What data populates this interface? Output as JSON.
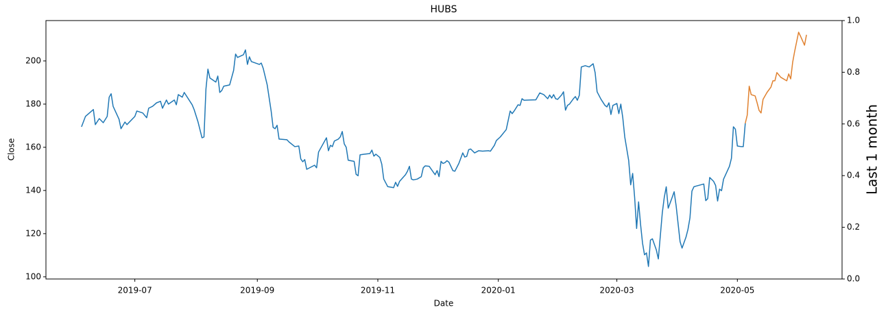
{
  "chart_data": {
    "type": "line",
    "title": "HUBS",
    "xlabel": "Date",
    "ylabel": "Close",
    "y2label": "Last 1 month",
    "xlim": [
      "2019-05-17",
      "2020-06-23"
    ],
    "xticks": [
      {
        "value": "2019-07-01",
        "label": "2019-07"
      },
      {
        "value": "2019-09-01",
        "label": "2019-09"
      },
      {
        "value": "2019-11-01",
        "label": "2019-11"
      },
      {
        "value": "2020-01-01",
        "label": "2020-01"
      },
      {
        "value": "2020-03-01",
        "label": "2020-03"
      },
      {
        "value": "2020-05-01",
        "label": "2020-05"
      }
    ],
    "ylim": [
      99.0,
      218.7
    ],
    "yticks": [
      100,
      120,
      140,
      160,
      180,
      200
    ],
    "y2lim": [
      0,
      1
    ],
    "y2ticks": [
      {
        "value": 0,
        "label": "0.0"
      },
      0.2,
      0.4,
      0.6,
      0.8,
      {
        "value": 1,
        "label": "1.0"
      }
    ],
    "grid": false,
    "series": [
      {
        "color": "#1f77b4",
        "x": [
          "2019-06-04",
          "2019-06-06",
          "2019-06-10",
          "2019-06-11",
          "2019-06-13",
          "2019-06-15",
          "2019-06-17",
          "2019-06-18",
          "2019-06-19",
          "2019-06-20",
          "2019-06-23",
          "2019-06-24",
          "2019-06-26",
          "2019-06-27",
          "2019-07-01",
          "2019-07-02",
          "2019-07-05",
          "2019-07-07",
          "2019-07-08",
          "2019-07-10",
          "2019-07-12",
          "2019-07-14",
          "2019-07-15",
          "2019-07-17",
          "2019-07-18",
          "2019-07-21",
          "2019-07-22",
          "2019-07-23",
          "2019-07-25",
          "2019-07-26",
          "2019-07-30",
          "2019-07-31",
          "2019-08-02",
          "2019-08-04",
          "2019-08-05",
          "2019-08-06",
          "2019-08-07",
          "2019-08-08",
          "2019-08-11",
          "2019-08-12",
          "2019-08-13",
          "2019-08-14",
          "2019-08-15",
          "2019-08-18",
          "2019-08-20",
          "2019-08-21",
          "2019-08-22",
          "2019-08-25",
          "2019-08-26",
          "2019-08-27",
          "2019-08-28",
          "2019-08-29",
          "2019-09-02",
          "2019-09-03",
          "2019-09-04",
          "2019-09-06",
          "2019-09-08",
          "2019-09-09",
          "2019-09-10",
          "2019-09-11",
          "2019-09-12",
          "2019-09-16",
          "2019-09-17",
          "2019-09-20",
          "2019-09-22",
          "2019-09-23",
          "2019-09-24",
          "2019-09-25",
          "2019-09-26",
          "2019-09-30",
          "2019-10-01",
          "2019-10-02",
          "2019-10-06",
          "2019-10-07",
          "2019-10-08",
          "2019-10-09",
          "2019-10-10",
          "2019-10-12",
          "2019-10-13",
          "2019-10-14",
          "2019-10-15",
          "2019-10-16",
          "2019-10-17",
          "2019-10-20",
          "2019-10-21",
          "2019-10-22",
          "2019-10-23",
          "2019-10-25",
          "2019-10-28",
          "2019-10-29",
          "2019-10-30",
          "2019-10-31",
          "2019-11-02",
          "2019-11-03",
          "2019-11-04",
          "2019-11-06",
          "2019-11-09",
          "2019-11-10",
          "2019-11-11",
          "2019-11-12",
          "2019-11-15",
          "2019-11-16",
          "2019-11-17",
          "2019-11-18",
          "2019-11-19",
          "2019-11-21",
          "2019-11-23",
          "2019-11-24",
          "2019-11-25",
          "2019-11-27",
          "2019-11-30",
          "2019-12-01",
          "2019-12-02",
          "2019-12-03",
          "2019-12-04",
          "2019-12-05",
          "2019-12-06",
          "2019-12-07",
          "2019-12-09",
          "2019-12-10",
          "2019-12-12",
          "2019-12-14",
          "2019-12-15",
          "2019-12-16",
          "2019-12-17",
          "2019-12-18",
          "2019-12-20",
          "2019-12-22",
          "2019-12-24",
          "2019-12-27",
          "2019-12-28",
          "2019-12-30",
          "2019-12-31",
          "2020-01-02",
          "2020-01-05",
          "2020-01-07",
          "2020-01-08",
          "2020-01-09",
          "2020-01-11",
          "2020-01-12",
          "2020-01-13",
          "2020-01-14",
          "2020-01-17",
          "2020-01-20",
          "2020-01-22",
          "2020-01-24",
          "2020-01-26",
          "2020-01-27",
          "2020-01-28",
          "2020-01-29",
          "2020-01-30",
          "2020-01-31",
          "2020-02-02",
          "2020-02-03",
          "2020-02-04",
          "2020-02-05",
          "2020-02-06",
          "2020-02-08",
          "2020-02-09",
          "2020-02-10",
          "2020-02-11",
          "2020-02-12",
          "2020-02-14",
          "2020-02-16",
          "2020-02-18",
          "2020-02-19",
          "2020-02-20",
          "2020-02-22",
          "2020-02-24",
          "2020-02-25",
          "2020-02-26",
          "2020-02-27",
          "2020-02-28",
          "2020-03-01",
          "2020-03-02",
          "2020-03-03",
          "2020-03-04",
          "2020-03-05",
          "2020-03-07",
          "2020-03-08",
          "2020-03-09",
          "2020-03-10",
          "2020-03-11",
          "2020-03-12",
          "2020-03-13",
          "2020-03-14",
          "2020-03-15",
          "2020-03-16",
          "2020-03-17",
          "2020-03-18",
          "2020-03-19",
          "2020-03-21",
          "2020-03-22",
          "2020-03-24",
          "2020-03-25",
          "2020-03-26",
          "2020-03-27",
          "2020-03-29",
          "2020-03-30",
          "2020-03-31",
          "2020-04-02",
          "2020-04-03",
          "2020-04-05",
          "2020-04-06",
          "2020-04-07",
          "2020-04-08",
          "2020-04-09",
          "2020-04-10",
          "2020-04-14",
          "2020-04-15",
          "2020-04-16",
          "2020-04-17",
          "2020-04-19",
          "2020-04-20",
          "2020-04-21",
          "2020-04-22",
          "2020-04-23",
          "2020-04-24",
          "2020-04-27",
          "2020-04-28",
          "2020-04-29",
          "2020-04-30",
          "2020-05-01",
          "2020-05-03",
          "2020-05-04",
          "2020-05-05"
        ],
        "values": [
          169.5,
          174.3,
          177.5,
          170.5,
          173.3,
          171.4,
          174.3,
          183.2,
          184.8,
          179,
          173,
          168.6,
          171.7,
          170.5,
          174.3,
          176.8,
          175.9,
          173.7,
          178.1,
          179,
          180.6,
          181.3,
          178.1,
          181.9,
          180,
          181.9,
          179.7,
          184.4,
          183.2,
          185.4,
          179.7,
          177.5,
          171.7,
          164.4,
          164.8,
          187,
          196.2,
          192.1,
          190.2,
          193,
          185.4,
          186.3,
          188.3,
          188.9,
          195.6,
          203.2,
          201.6,
          202.9,
          205.1,
          198.4,
          201.9,
          199.7,
          198.4,
          199,
          196.5,
          188.9,
          176.8,
          169.2,
          168.6,
          170.2,
          163.8,
          163.5,
          162.5,
          160.3,
          160.6,
          154.6,
          153.3,
          154.3,
          149.8,
          151.7,
          150.5,
          157.8,
          164.4,
          158.4,
          160.9,
          160.3,
          162.9,
          163.8,
          164.8,
          167.3,
          161.6,
          160,
          154,
          153.5,
          147.5,
          146.8,
          156.5,
          156.8,
          157.1,
          158.7,
          155.9,
          156.8,
          155.3,
          152.2,
          145.3,
          141.8,
          141.3,
          143.8,
          141.9,
          144.2,
          147.3,
          148.9,
          151.2,
          145.3,
          144.9,
          145.3,
          146.4,
          150.5,
          151.4,
          151.2,
          147.3,
          149.2,
          146.4,
          153.5,
          152.5,
          152.9,
          153.8,
          153.1,
          149.2,
          148.9,
          152.5,
          157.4,
          155.5,
          155.8,
          158.9,
          159.2,
          157.4,
          158.4,
          158.2,
          158.4,
          158.2,
          160.9,
          163.1,
          164.8,
          168.2,
          176.8,
          175.6,
          176.8,
          179.7,
          179.4,
          182.5,
          181.8,
          181.9,
          182,
          185.2,
          184.4,
          182.5,
          184.2,
          182.8,
          184.4,
          182.5,
          182.2,
          184.2,
          185.7,
          177.2,
          179.4,
          180,
          182.5,
          183.5,
          181.8,
          184.1,
          197.2,
          197.8,
          197.2,
          198.7,
          194.6,
          185.7,
          182.2,
          179.4,
          178.7,
          180.6,
          175.2,
          179.4,
          180.3,
          175.6,
          180,
          173.7,
          164.8,
          153.8,
          142.6,
          147.9,
          136.8,
          122.4,
          134.7,
          124.3,
          115.6,
          110.2,
          111.1,
          104.8,
          117,
          117.6,
          112.4,
          108.3,
          129.6,
          136.8,
          141.7,
          131.8,
          136.8,
          139.4,
          133,
          116.3,
          113.3,
          118.4,
          122,
          127.3,
          139.7,
          141.7,
          142,
          143,
          135.3,
          136.2,
          146,
          144.2,
          142.3,
          135.1,
          140.6,
          139.9,
          145.2,
          151.2,
          154.9,
          169.5,
          168.4,
          160.6,
          160.3,
          160.3,
          171.1
        ]
      },
      {
        "color": "#e0812f",
        "x": [
          "2020-05-05",
          "2020-05-06",
          "2020-05-07",
          "2020-05-08",
          "2020-05-10",
          "2020-05-11",
          "2020-05-12",
          "2020-05-13",
          "2020-05-14",
          "2020-05-16",
          "2020-05-18",
          "2020-05-19",
          "2020-05-20",
          "2020-05-21",
          "2020-05-23",
          "2020-05-26",
          "2020-05-27",
          "2020-05-28",
          "2020-05-29",
          "2020-05-30",
          "2020-06-01",
          "2020-06-02",
          "2020-06-04",
          "2020-06-05"
        ],
        "values": [
          171.1,
          174.9,
          188.3,
          184.4,
          183.8,
          180.6,
          177.1,
          175.9,
          182.2,
          185.4,
          187.9,
          190.8,
          190.8,
          194.6,
          192.4,
          190.8,
          194,
          191.7,
          199.4,
          204.4,
          213.3,
          211.4,
          207.3,
          212.1
        ]
      }
    ]
  }
}
